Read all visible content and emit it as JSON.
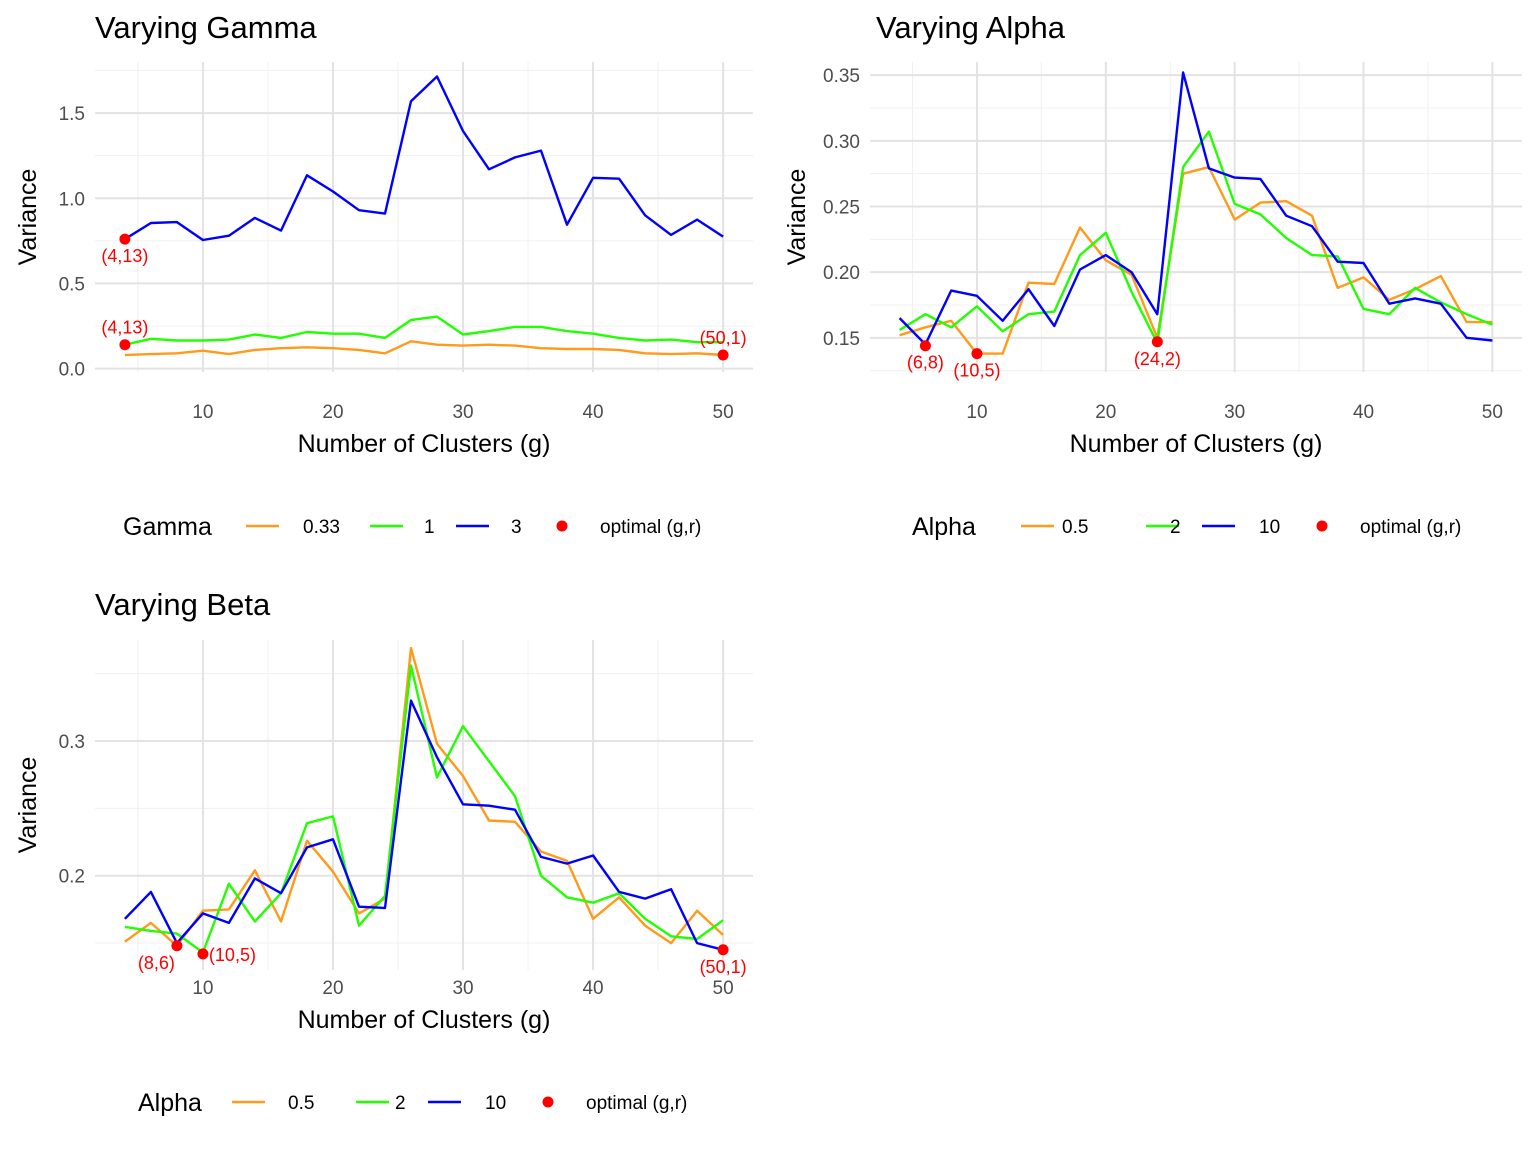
{
  "chart_data": [
    {
      "type": "line",
      "title": "Varying Gamma",
      "xlabel": "Number of Clusters (g)",
      "ylabel": "Variance",
      "xlim": [
        1.7,
        52.3
      ],
      "ylim": [
        -0.02,
        1.8
      ],
      "xticks": [
        10,
        20,
        30,
        40,
        50
      ],
      "xtick_labels": [
        "10",
        "20",
        "30",
        "40",
        "50"
      ],
      "yticks": [
        0.0,
        0.5,
        1.0,
        1.5
      ],
      "ytick_labels": [
        "0.0",
        "0.5",
        "1.0",
        "1.5"
      ],
      "legend_title": "Gamma",
      "legend_position": "bottom",
      "grid": true,
      "x": [
        4,
        6,
        8,
        10,
        12,
        14,
        16,
        18,
        20,
        22,
        24,
        26,
        28,
        30,
        32,
        34,
        36,
        38,
        40,
        42,
        44,
        46,
        48,
        50
      ],
      "series": [
        {
          "name": "0.33",
          "color": "#ff9a1a",
          "values": [
            0.08,
            0.085,
            0.09,
            0.105,
            0.085,
            0.11,
            0.12,
            0.125,
            0.12,
            0.11,
            0.09,
            0.16,
            0.14,
            0.135,
            0.14,
            0.135,
            0.12,
            0.115,
            0.115,
            0.11,
            0.09,
            0.085,
            0.09,
            0.08
          ]
        },
        {
          "name": "1",
          "color": "#22ff00",
          "values": [
            0.14,
            0.175,
            0.165,
            0.165,
            0.17,
            0.2,
            0.18,
            0.215,
            0.205,
            0.205,
            0.18,
            0.285,
            0.305,
            0.2,
            0.22,
            0.245,
            0.245,
            0.22,
            0.205,
            0.18,
            0.165,
            0.17,
            0.155,
            0.155
          ]
        },
        {
          "name": "3",
          "color": "#0000ff",
          "values": [
            0.76,
            0.855,
            0.86,
            0.755,
            0.78,
            0.885,
            0.81,
            1.135,
            1.04,
            0.93,
            0.91,
            1.57,
            1.715,
            1.395,
            1.17,
            1.24,
            1.28,
            0.845,
            1.12,
            1.115,
            0.9,
            0.785,
            0.875,
            0.775
          ]
        }
      ],
      "points_legend": "optimal (g,r)",
      "points_color": "#ff0000",
      "points": [
        {
          "x": 4,
          "y": 0.76,
          "label": "(4,13)",
          "pos": "below"
        },
        {
          "x": 4,
          "y": 0.14,
          "label": "(4,13)",
          "pos": "above"
        },
        {
          "x": 50,
          "y": 0.08,
          "label": "(50,1)",
          "pos": "above"
        }
      ]
    },
    {
      "type": "line",
      "title": "Varying Alpha",
      "xlabel": "Number of Clusters (g)",
      "ylabel": "Variance",
      "xlim": [
        1.7,
        52.3
      ],
      "ylim": [
        0.124,
        0.36
      ],
      "xticks": [
        10,
        20,
        30,
        40,
        50
      ],
      "xtick_labels": [
        "10",
        "20",
        "30",
        "40",
        "50"
      ],
      "yticks": [
        0.15,
        0.2,
        0.25,
        0.3,
        0.35
      ],
      "ytick_labels": [
        "0.15",
        "0.20",
        "0.25",
        "0.30",
        "0.35"
      ],
      "legend_title": "Alpha",
      "legend_position": "bottom",
      "grid": true,
      "x": [
        4,
        6,
        8,
        10,
        12,
        14,
        16,
        18,
        20,
        22,
        24,
        26,
        28,
        30,
        32,
        34,
        36,
        38,
        40,
        42,
        44,
        46,
        48,
        50
      ],
      "series": [
        {
          "name": "0.5",
          "color": "#ff9a1a",
          "values": [
            0.152,
            0.158,
            0.163,
            0.138,
            0.138,
            0.192,
            0.191,
            0.234,
            0.209,
            0.198,
            0.15,
            0.275,
            0.28,
            0.24,
            0.253,
            0.254,
            0.243,
            0.188,
            0.196,
            0.179,
            0.187,
            0.197,
            0.162,
            0.162
          ]
        },
        {
          "name": "2",
          "color": "#22ff00",
          "values": [
            0.156,
            0.168,
            0.158,
            0.174,
            0.155,
            0.168,
            0.17,
            0.213,
            0.23,
            0.185,
            0.146,
            0.28,
            0.307,
            0.252,
            0.244,
            0.226,
            0.213,
            0.212,
            0.172,
            0.168,
            0.188,
            0.177,
            0.168,
            0.16
          ]
        },
        {
          "name": "10",
          "color": "#0000ff",
          "values": [
            0.165,
            0.145,
            0.186,
            0.182,
            0.163,
            0.187,
            0.159,
            0.202,
            0.213,
            0.2,
            0.168,
            0.352,
            0.279,
            0.272,
            0.271,
            0.243,
            0.235,
            0.208,
            0.207,
            0.176,
            0.18,
            0.176,
            0.15,
            0.148
          ]
        }
      ],
      "points_legend": "optimal (g,r)",
      "points_color": "#ff0000",
      "points": [
        {
          "x": 6,
          "y": 0.144,
          "label": "(6,8)",
          "pos": "below"
        },
        {
          "x": 10,
          "y": 0.138,
          "label": "(10,5)",
          "pos": "below"
        },
        {
          "x": 24,
          "y": 0.147,
          "label": "(24,2)",
          "pos": "below"
        }
      ]
    },
    {
      "type": "line",
      "title": "Varying Beta",
      "xlabel": "Number of Clusters (g)",
      "ylabel": "Variance",
      "xlim": [
        1.7,
        52.3
      ],
      "ylim": [
        0.13,
        0.375
      ],
      "xticks": [
        10,
        20,
        30,
        40,
        50
      ],
      "xtick_labels": [
        "10",
        "20",
        "30",
        "40",
        "50"
      ],
      "yticks": [
        0.2,
        0.3
      ],
      "ytick_labels": [
        "0.2",
        "0.3"
      ],
      "legend_title": "Alpha",
      "legend_position": "bottom",
      "grid": true,
      "x": [
        4,
        6,
        8,
        10,
        12,
        14,
        16,
        18,
        20,
        22,
        24,
        26,
        28,
        30,
        32,
        34,
        36,
        38,
        40,
        42,
        44,
        46,
        48,
        50
      ],
      "series": [
        {
          "name": "0.5",
          "color": "#ff9a1a",
          "values": [
            0.151,
            0.165,
            0.148,
            0.174,
            0.175,
            0.204,
            0.166,
            0.226,
            0.203,
            0.172,
            0.183,
            0.369,
            0.298,
            0.274,
            0.241,
            0.24,
            0.218,
            0.211,
            0.168,
            0.184,
            0.163,
            0.15,
            0.174,
            0.156
          ]
        },
        {
          "name": "2",
          "color": "#22ff00",
          "values": [
            0.162,
            0.159,
            0.157,
            0.143,
            0.194,
            0.166,
            0.187,
            0.239,
            0.244,
            0.163,
            0.185,
            0.356,
            0.273,
            0.311,
            0.285,
            0.259,
            0.2,
            0.184,
            0.18,
            0.187,
            0.168,
            0.155,
            0.153,
            0.167
          ]
        },
        {
          "name": "10",
          "color": "#0000ff",
          "values": [
            0.168,
            0.188,
            0.15,
            0.172,
            0.165,
            0.198,
            0.187,
            0.221,
            0.227,
            0.177,
            0.176,
            0.33,
            0.288,
            0.253,
            0.252,
            0.249,
            0.214,
            0.209,
            0.215,
            0.188,
            0.183,
            0.19,
            0.15,
            0.145
          ]
        }
      ],
      "points_legend": "optimal (g,r)",
      "points_color": "#ff0000",
      "points": [
        {
          "x": 8,
          "y": 0.148,
          "label": "(8,6)",
          "pos": "below-left"
        },
        {
          "x": 10,
          "y": 0.142,
          "label": "(10,5)",
          "pos": "right"
        },
        {
          "x": 50,
          "y": 0.145,
          "label": "(50,1)",
          "pos": "below"
        }
      ]
    }
  ]
}
